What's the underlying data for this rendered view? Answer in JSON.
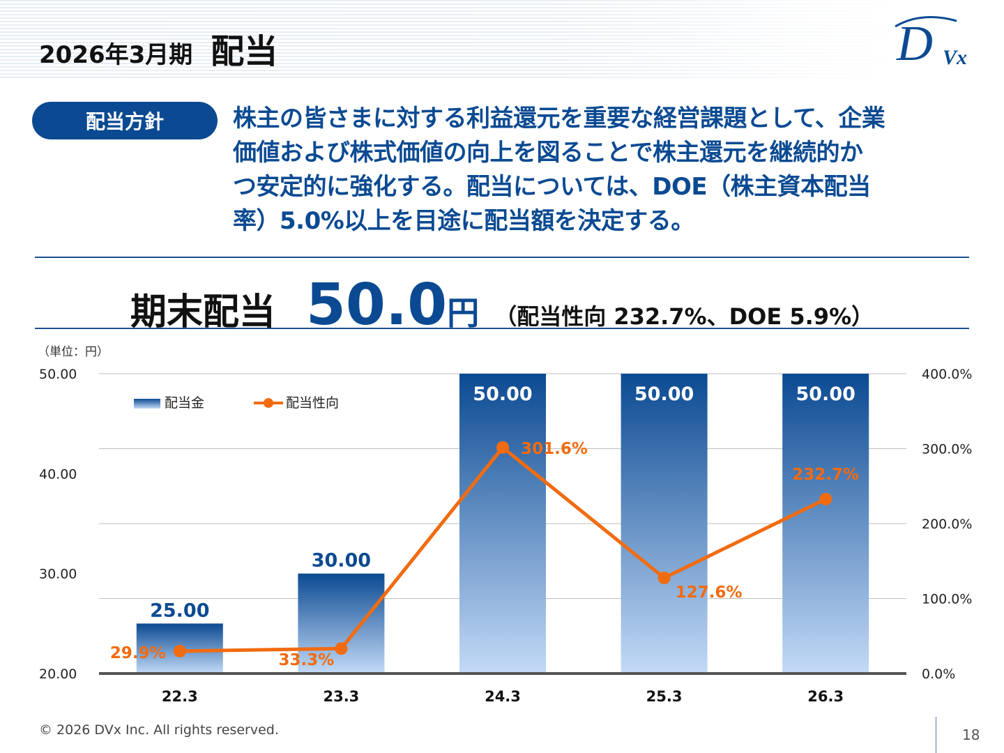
{
  "header": {
    "period": "2026年3月期",
    "title": "配当"
  },
  "logo": {
    "text": "DVx"
  },
  "policy": {
    "label": "配当方針",
    "lines": [
      "株主の皆さまに対する利益還元を重要な経営課題として、企業",
      "価値および株式価値の向上を図ることで株主還元を継続的か",
      "つ安定的に強化する。配当については、DOE（株主資本配当",
      "率）5.0%以上を目途に配当額を決定する。"
    ]
  },
  "highlight": {
    "label": "期末配当",
    "value": "50.0",
    "unit": "円",
    "note": "（配当性向  232.7%、DOE  5.9%）"
  },
  "chart_data": {
    "type": "bar",
    "unit_label": "（単位：円）",
    "categories": [
      "22.3",
      "23.3",
      "24.3",
      "25.3",
      "26.3"
    ],
    "series": [
      {
        "name": "配当金",
        "type": "bar",
        "axis": "left",
        "values": [
          25.0,
          30.0,
          50.0,
          50.0,
          50.0
        ],
        "labels": [
          "25.00",
          "30.00",
          "50.00",
          "50.00",
          "50.00"
        ]
      },
      {
        "name": "配当性向",
        "type": "line",
        "axis": "right",
        "values": [
          29.9,
          33.3,
          301.6,
          127.6,
          232.7
        ],
        "labels": [
          "29.9%",
          "33.3%",
          "301.6%",
          "127.6%",
          "232.7%"
        ]
      }
    ],
    "ylim_left": [
      20,
      50
    ],
    "ylim_right": [
      0,
      400
    ],
    "yticks_left": [
      "50.00",
      "40.00",
      "30.00",
      "20.00"
    ],
    "yticks_right": [
      "400.0%",
      "300.0%",
      "200.0%",
      "100.0%",
      "0.0%"
    ],
    "grid": true,
    "legend": "top-left",
    "colors": {
      "bar_top": "#0b4a92",
      "bar_bottom": "#c3daf7",
      "line": "#f26b10"
    }
  },
  "footer": {
    "copyright": "© 2026 DVx Inc. All rights reserved.",
    "page": "18"
  }
}
